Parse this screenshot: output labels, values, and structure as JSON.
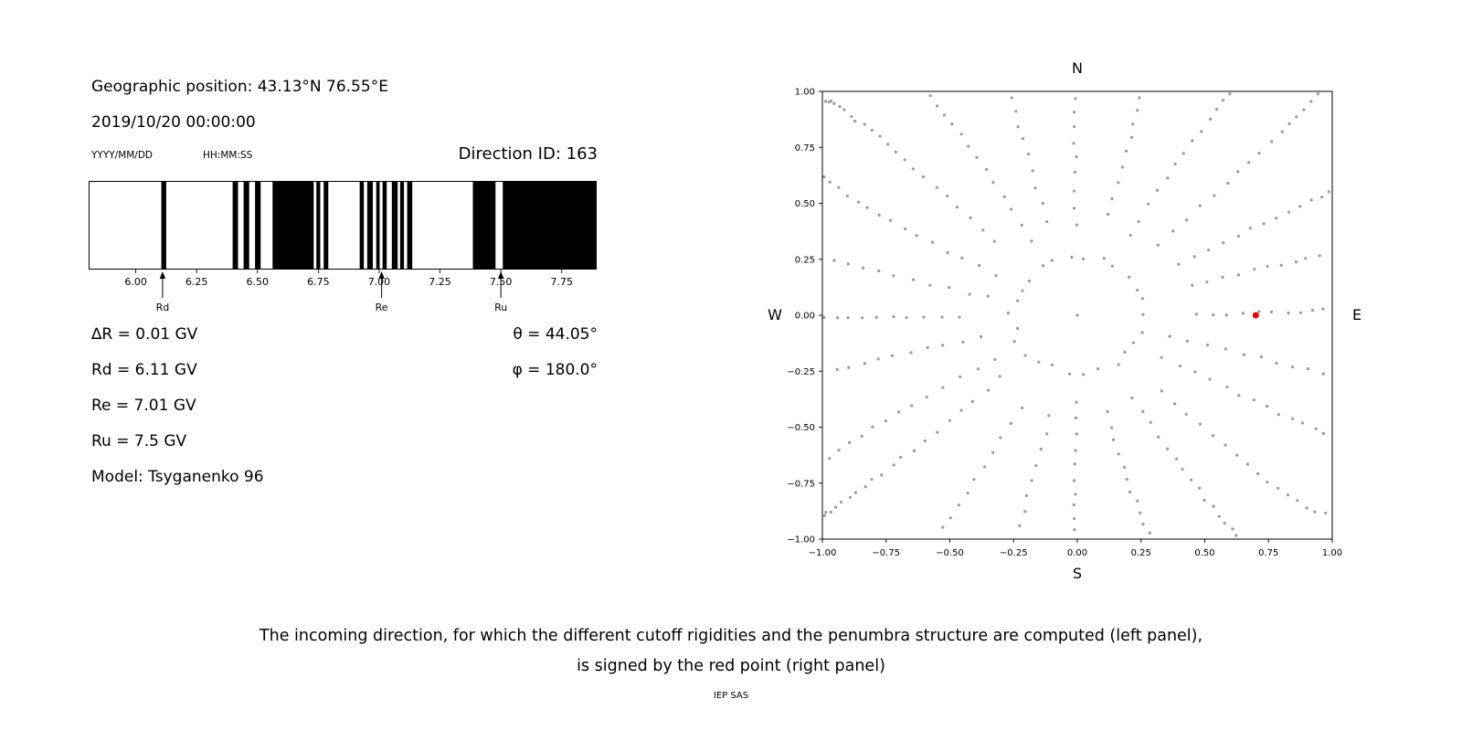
{
  "header": {
    "geographic_position": "Geographic position: 43.13°N 76.55°E",
    "datetime": "2019/10/20 00:00:00",
    "date_format_label": "YYYY/MM/DD",
    "time_format_label": "HH:MM:SS",
    "direction_id": "Direction ID: 163"
  },
  "cutoff_info": {
    "delta_r": "∆R = 0.01 GV",
    "rd": "Rd = 6.11 GV",
    "re": "Re = 7.01 GV",
    "ru": "Ru = 7.5 GV",
    "model": "Model: Tsyganenko 96",
    "theta": "θ = 44.05°",
    "phi": "φ = 180.0°"
  },
  "caption": {
    "line1": "The incoming direction, for which the different cutoff rigidities and the penumbra structure are computed (left panel),",
    "line2": "is signed by the red point (right panel)",
    "credit": "IEP SAS"
  },
  "chart_data": [
    {
      "name": "penumbra-structure",
      "type": "bar",
      "description": "Penumbra structure barcode: black bands over rigidity axis in GV",
      "xlabel": "",
      "ylabel": "",
      "title": "",
      "xlim": [
        5.81,
        7.89
      ],
      "xticks": [
        6.0,
        6.25,
        6.5,
        6.75,
        7.0,
        7.25,
        7.5,
        7.75
      ],
      "xtick_labels": [
        "6.00",
        "6.25",
        "6.50",
        "6.75",
        "7.00",
        "7.25",
        "7.50",
        "7.75"
      ],
      "band_color": "#000000",
      "black_bands_gv": [
        [
          6.105,
          6.125
        ],
        [
          6.398,
          6.42
        ],
        [
          6.443,
          6.466
        ],
        [
          6.49,
          6.513
        ],
        [
          6.562,
          6.731
        ],
        [
          6.742,
          6.758
        ],
        [
          6.772,
          6.791
        ],
        [
          6.92,
          6.937
        ],
        [
          6.951,
          6.974
        ],
        [
          6.988,
          7.002
        ],
        [
          7.014,
          7.031
        ],
        [
          7.052,
          7.076
        ],
        [
          7.086,
          7.102
        ],
        [
          7.115,
          7.136
        ],
        [
          7.385,
          7.478
        ],
        [
          7.508,
          7.89
        ]
      ],
      "markers": [
        {
          "label": "Rd",
          "value": 6.11
        },
        {
          "label": "Re",
          "value": 7.01
        },
        {
          "label": "Ru",
          "value": 7.5
        }
      ]
    },
    {
      "name": "incoming-direction-map",
      "type": "scatter",
      "title": "",
      "xlim": [
        -1,
        1
      ],
      "ylim": [
        -1,
        1
      ],
      "grid": false,
      "xticks": [
        -1,
        -0.75,
        -0.5,
        -0.25,
        0,
        0.25,
        0.5,
        0.75,
        1
      ],
      "xtick_labels": [
        "−1.00",
        "−0.75",
        "−0.50",
        "−0.25",
        "0.00",
        "0.25",
        "0.50",
        "0.75",
        "1.00"
      ],
      "yticks": [
        -1,
        -0.75,
        -0.5,
        -0.25,
        0,
        0.25,
        0.5,
        0.75,
        1
      ],
      "ytick_labels": [
        "−1.00",
        "−0.75",
        "−0.50",
        "−0.25",
        "0.00",
        "0.25",
        "0.50",
        "0.75",
        "1.00"
      ],
      "compass": {
        "top": "N",
        "bottom": "S",
        "left": "W",
        "right": "E"
      },
      "red_point": {
        "x": 0.7,
        "y": 0.0,
        "color": "#e8000b"
      },
      "gray_points": {
        "color": "#999999",
        "pattern": "radial-spokes",
        "seed": 42,
        "center_dot": true,
        "inner_ring": {
          "radius": 0.26,
          "count": 26
        },
        "spokes": {
          "count": 24,
          "r_min": 0.35,
          "r_max": 1.38,
          "points_per_spoke": 22,
          "curvature": 0.12
        }
      }
    }
  ]
}
